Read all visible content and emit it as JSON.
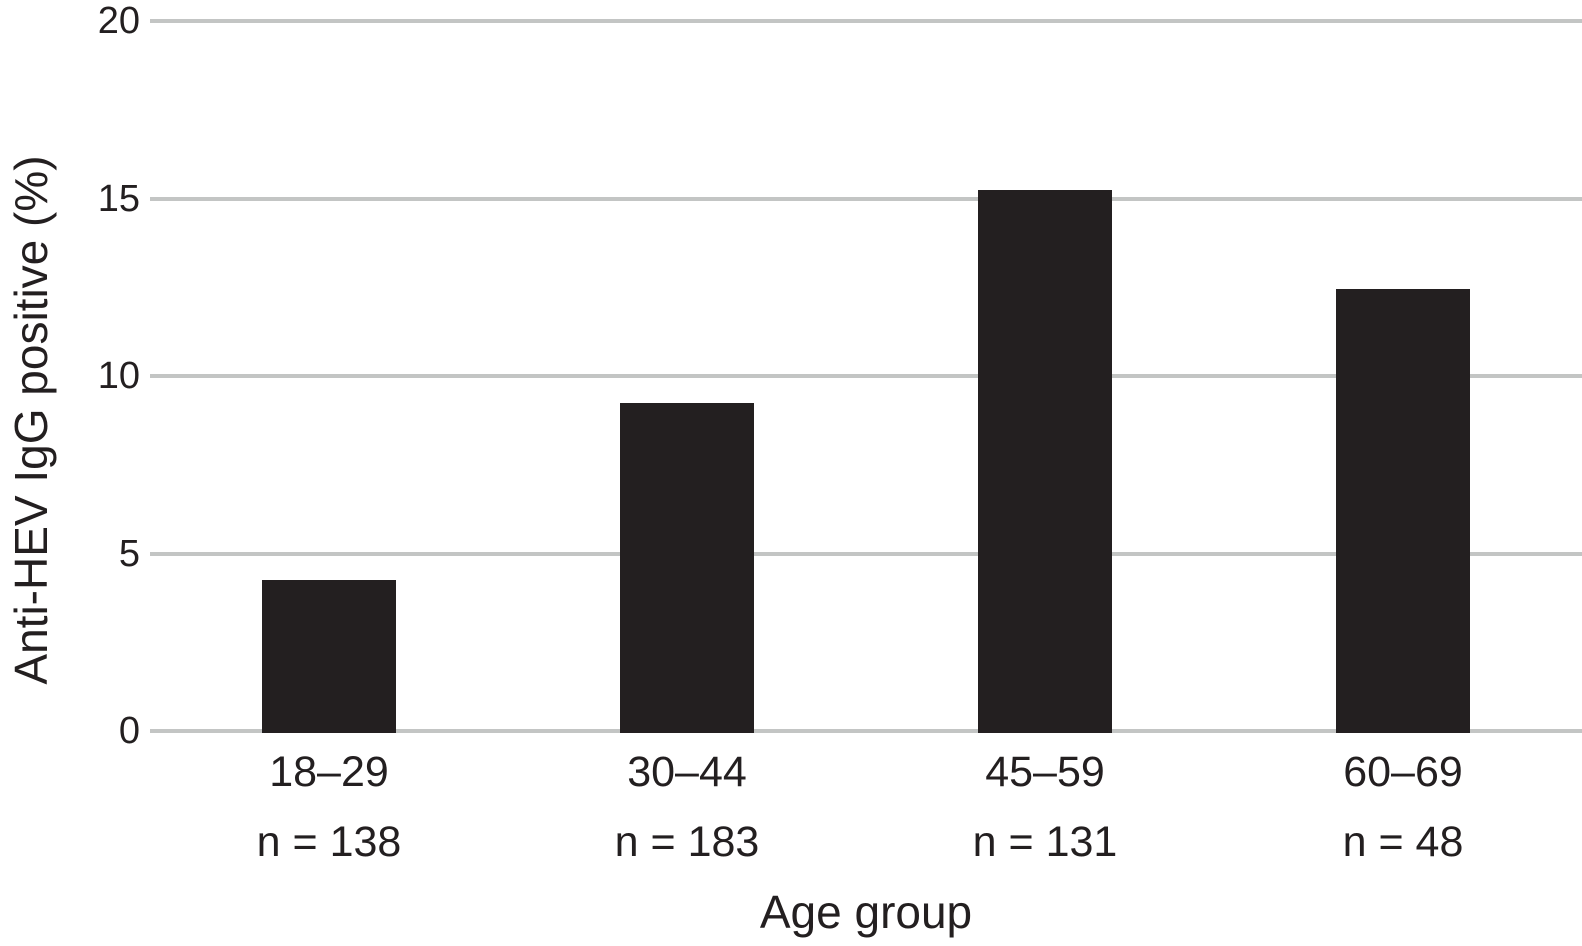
{
  "chart_data": {
    "type": "bar",
    "title": "",
    "xlabel": "Age group",
    "ylabel": "Anti-HEV IgG positive (%)",
    "categories": [
      "18–29",
      "30–44",
      "45–59",
      "60–69"
    ],
    "values": [
      4.3,
      9.3,
      15.3,
      12.5
    ],
    "n_labels": [
      "n = 138",
      "n = 183",
      "n = 131",
      "n = 48"
    ],
    "yticks": [
      0,
      5,
      10,
      15,
      20
    ],
    "ylim": [
      0,
      20
    ],
    "bar_color": "#231f20",
    "gridline_color": "#c3c5c4",
    "text_color": "#231f20",
    "grid": "horizontal",
    "legend": "none"
  }
}
